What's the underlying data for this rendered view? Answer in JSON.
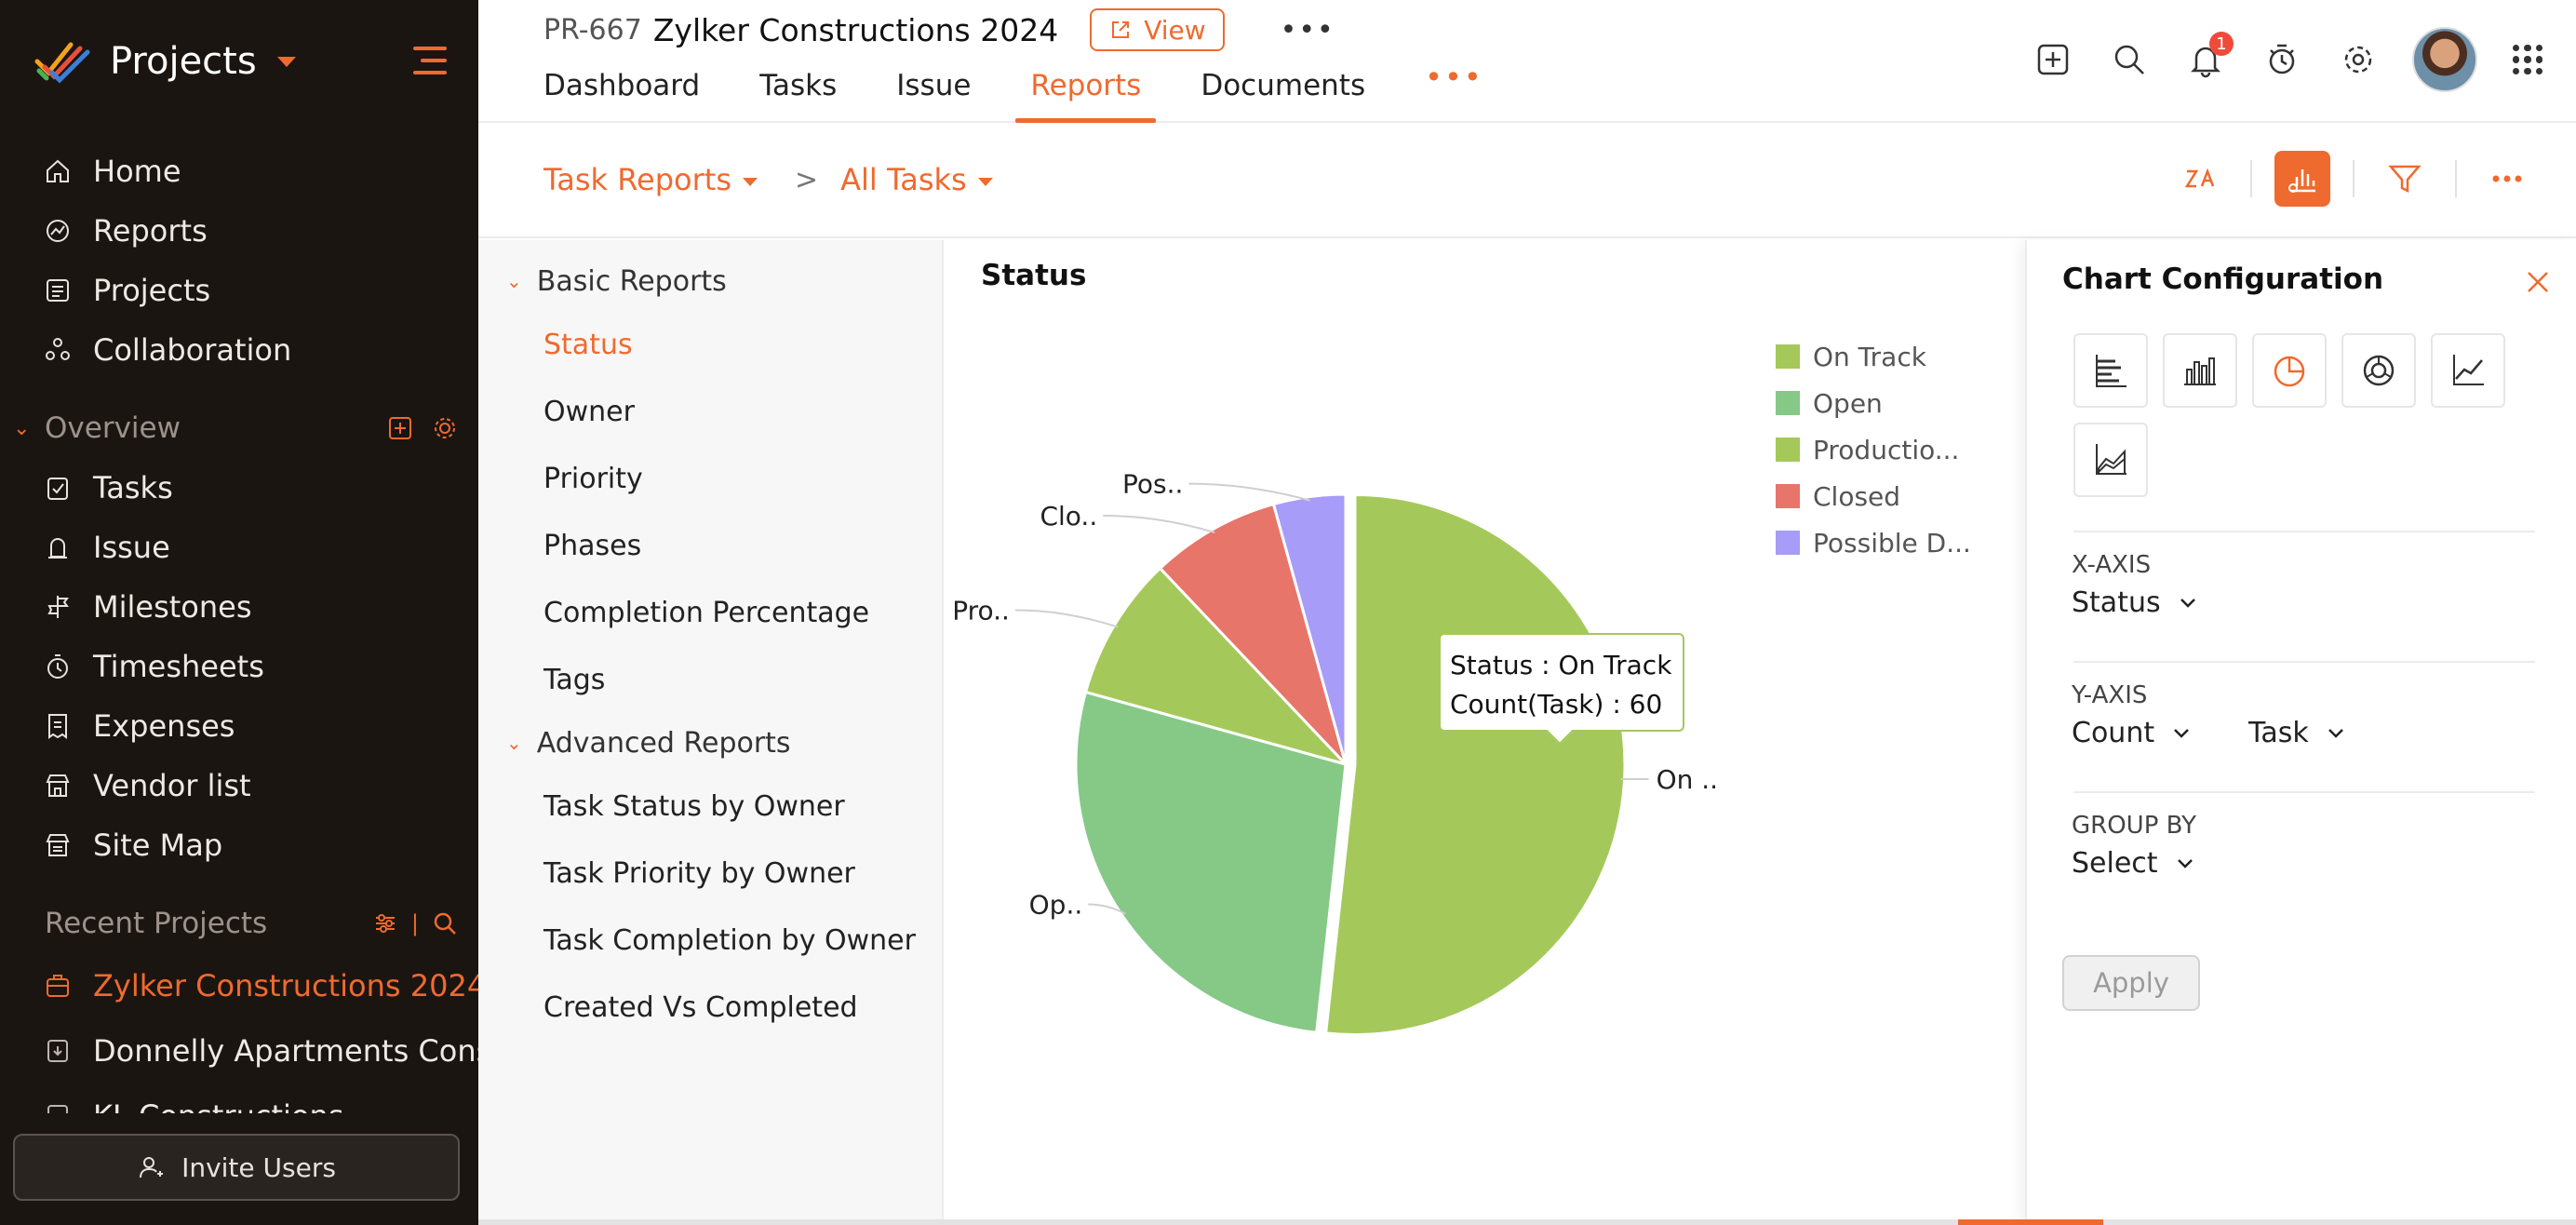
{
  "app": {
    "title": "Projects"
  },
  "sidebar": {
    "main_nav": [
      {
        "label": "Home",
        "icon": "home-icon"
      },
      {
        "label": "Reports",
        "icon": "reports-icon"
      },
      {
        "label": "Projects",
        "icon": "projects-icon"
      },
      {
        "label": "Collaboration",
        "icon": "collaboration-icon"
      }
    ],
    "overview_label": "Overview",
    "overview_nav": [
      {
        "label": "Tasks",
        "icon": "tasks-icon"
      },
      {
        "label": "Issue",
        "icon": "issue-icon"
      },
      {
        "label": "Milestones",
        "icon": "milestones-icon"
      },
      {
        "label": "Timesheets",
        "icon": "timesheets-icon"
      },
      {
        "label": "Expenses",
        "icon": "expenses-icon"
      },
      {
        "label": "Vendor list",
        "icon": "vendor-icon"
      },
      {
        "label": "Site Map",
        "icon": "sitemap-icon"
      }
    ],
    "recent_label": "Recent Projects",
    "recent_projects": [
      {
        "label": "Zylker Constructions 2024",
        "active": true
      },
      {
        "label": "Donnelly Apartments Cons",
        "active": false
      },
      {
        "label": "KL Constructions",
        "active": false
      }
    ],
    "invite_label": "Invite Users"
  },
  "header": {
    "project_id": "PR-667",
    "project_name": "Zylker Constructions 2024",
    "view_label": "View",
    "more_label": "•••",
    "tabs": [
      {
        "label": "Dashboard",
        "active": false
      },
      {
        "label": "Tasks",
        "active": false
      },
      {
        "label": "Issue",
        "active": false
      },
      {
        "label": "Reports",
        "active": true
      },
      {
        "label": "Documents",
        "active": false
      }
    ],
    "tabs_more_label": "•••",
    "notification_count": "1"
  },
  "subheader": {
    "crumb_1": "Task Reports",
    "separator": ">",
    "crumb_2": "All Tasks"
  },
  "report_list": {
    "basic_label": "Basic Reports",
    "basic_items": [
      "Status",
      "Owner",
      "Priority",
      "Phases",
      "Completion Percentage",
      "Tags"
    ],
    "active_item": "Status",
    "advanced_label": "Advanced Reports",
    "advanced_items": [
      "Task Status by Owner",
      "Task Priority by Owner",
      "Task Completion by Owner",
      "Created Vs Completed"
    ]
  },
  "chart_data": {
    "type": "pie",
    "title": "Status",
    "series": [
      {
        "name": "On Track",
        "value": 60,
        "color": "#a4c95a",
        "slice_label": "On .."
      },
      {
        "name": "Open",
        "value": 32,
        "color": "#86c987",
        "slice_label": "Op.."
      },
      {
        "name": "Production Halt",
        "value": 10,
        "color": "#a4c95a",
        "slice_label": "Pro.."
      },
      {
        "name": "Closed",
        "value": 9,
        "color": "#e7756a",
        "slice_label": "Clo.."
      },
      {
        "name": "Possible Delay",
        "value": 5,
        "color": "#a79cf7",
        "slice_label": "Pos.."
      }
    ],
    "legend": [
      {
        "label": "On Track",
        "color": "#a4c95a"
      },
      {
        "label": "Open",
        "color": "#86c987"
      },
      {
        "label": "Productio...",
        "color": "#a4c95a"
      },
      {
        "label": "Closed",
        "color": "#e7756a"
      },
      {
        "label": "Possible D...",
        "color": "#a79cf7"
      }
    ],
    "legend_position": "top-right",
    "tooltip": {
      "line1": "Status : On Track",
      "line2": "Count(Task) : 60"
    }
  },
  "config": {
    "title": "Chart Configuration",
    "chart_types": [
      "horizontal-bar-icon",
      "vertical-bar-icon",
      "pie-icon",
      "donut-icon",
      "line-icon",
      "area-icon"
    ],
    "selected_type": "pie-icon",
    "x_axis_label": "X-AXIS",
    "x_axis_value": "Status",
    "y_axis_label": "Y-AXIS",
    "y_axis_value": "Count",
    "y_axis_field": "Task",
    "group_by_label": "GROUP BY",
    "group_by_value": "Select",
    "apply_label": "Apply"
  },
  "colors": {
    "accent": "#ef6a2e",
    "sidebar_bg": "#1b1512"
  }
}
